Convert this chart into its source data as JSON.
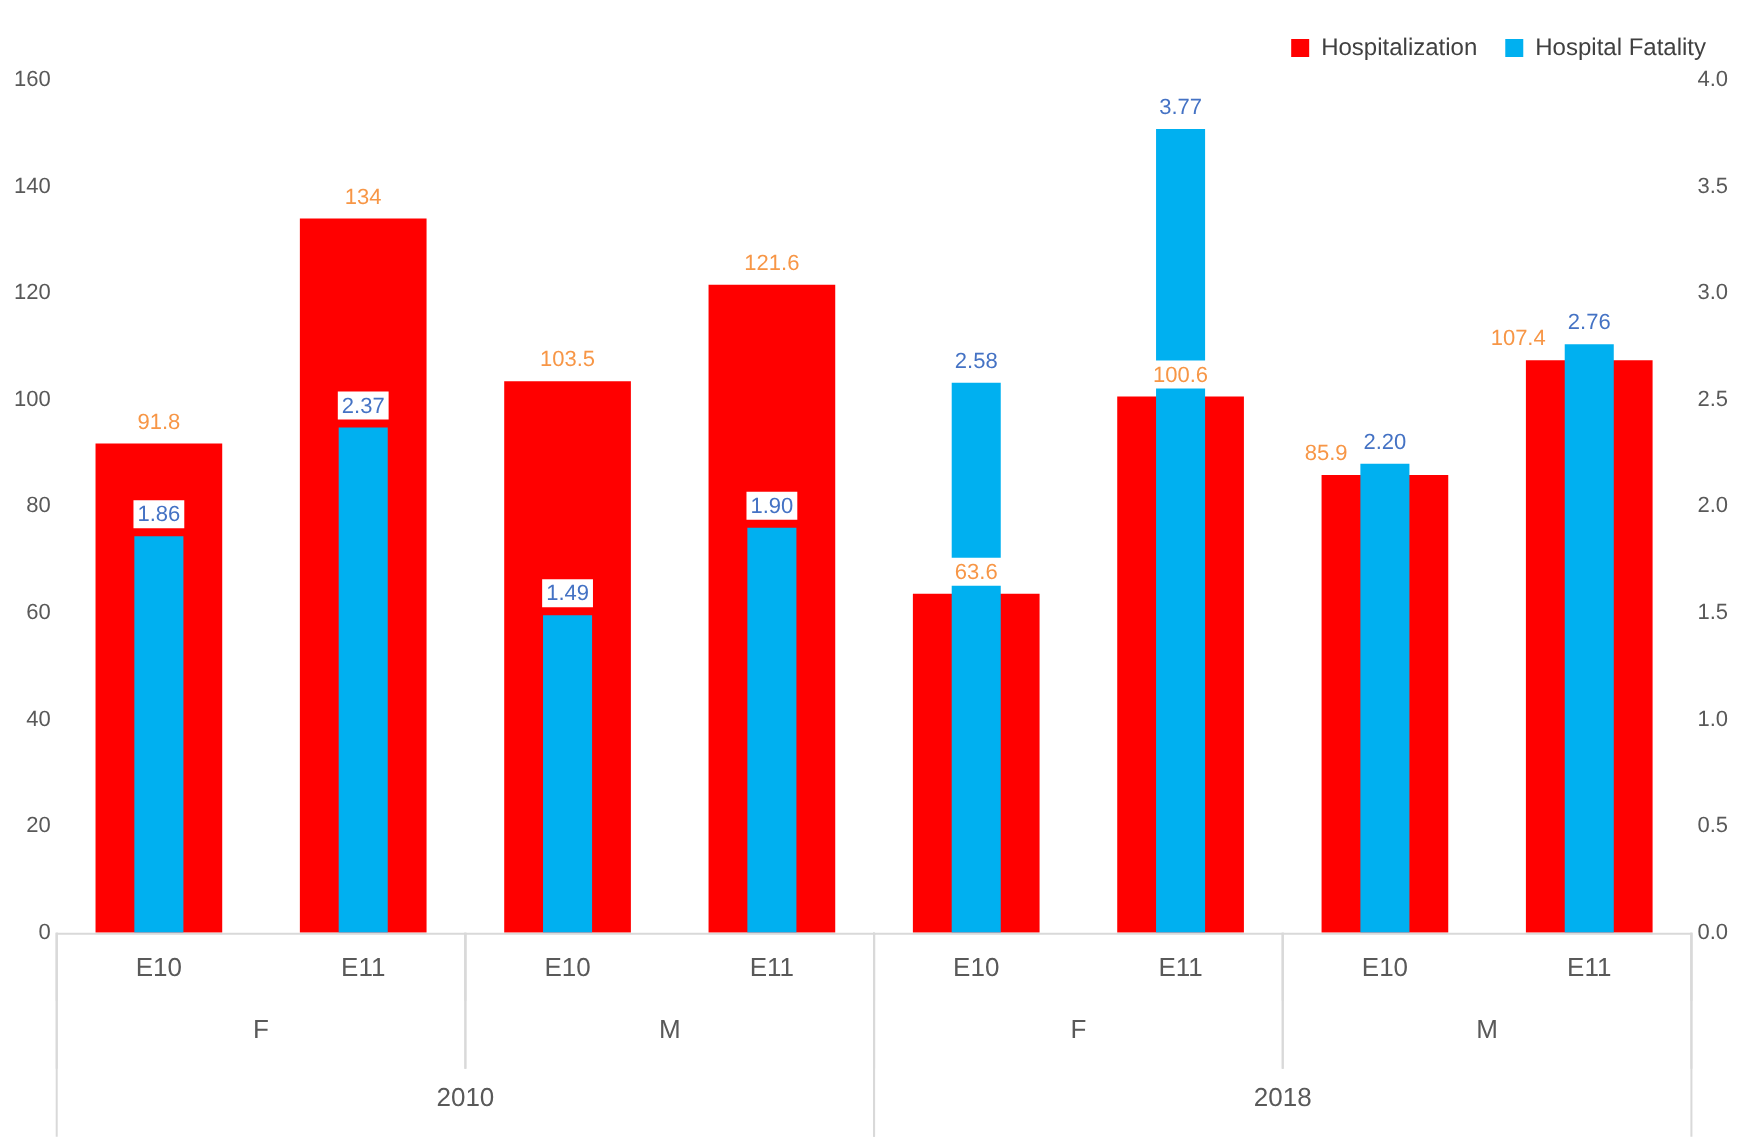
{
  "chart_data": {
    "type": "bar",
    "categories": [
      "E10",
      "E11",
      "E10",
      "E11",
      "E10",
      "E11",
      "E10",
      "E11"
    ],
    "series": [
      {
        "name": "Hospitalization",
        "color": "#ff0000",
        "values": [
          91.8,
          134,
          103.5,
          121.6,
          63.6,
          100.6,
          85.9,
          107.4
        ],
        "value_labels": [
          "91.8",
          "134",
          "103.5",
          "121.6",
          "63.6",
          "100.6",
          "85.9",
          "107.4"
        ]
      },
      {
        "name": "Hospital Fatality",
        "color": "#00b0f0",
        "axis": "y2",
        "values": [
          1.86,
          2.37,
          1.49,
          1.9,
          2.58,
          3.77,
          2.2,
          2.76
        ],
        "value_labels": [
          "1.86",
          "2.37",
          "1.49",
          "1.90",
          "2.58",
          "3.77",
          "2.20",
          "2.76"
        ]
      }
    ],
    "annotations": [
      "F",
      "M",
      "F",
      "M",
      "2010",
      "2018"
    ],
    "ylim": [
      0,
      160
    ],
    "yticks": [
      0,
      20,
      40,
      60,
      80,
      100,
      120,
      140,
      160
    ],
    "y2lim": [
      0,
      4
    ],
    "y2ticks": [
      {
        "value": 0,
        "label": "0.0"
      },
      {
        "value": 0.5,
        "label": "0.5"
      },
      {
        "value": 1,
        "label": "1.0"
      },
      {
        "value": 1.5,
        "label": "1.5"
      },
      {
        "value": 2,
        "label": "2.0"
      },
      {
        "value": 2.5,
        "label": "2.5"
      },
      {
        "value": 3,
        "label": "3.0"
      },
      {
        "value": 3.5,
        "label": "3.5"
      },
      {
        "value": 4,
        "label": "4.0"
      }
    ],
    "grid": false,
    "legend": "top right"
  }
}
